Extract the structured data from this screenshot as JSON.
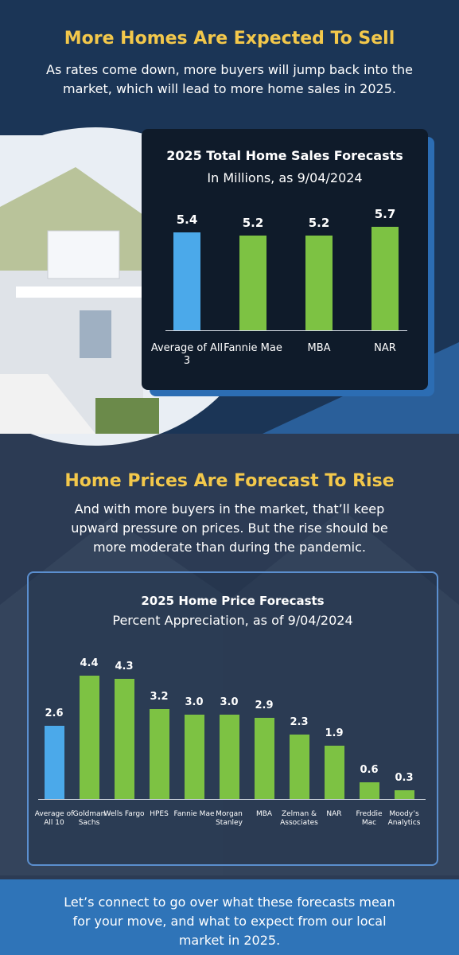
{
  "sections": [
    {
      "title": "More Homes Are Expected To Sell",
      "text": "As rates come down, more buyers will jump back into the market, which will lead to more home sales in 2025."
    },
    {
      "title": "Home Prices Are Forecast To Rise",
      "text": "And with more buyers in the market, that’ll keep upward pressure on prices. But the rise should be more moderate than during the pandemic."
    }
  ],
  "footer": "Let’s connect to go over what these forecasts mean for your move, and what to expect from our local market in 2025.",
  "chart_data": [
    {
      "type": "bar",
      "title": "2025 Total Home Sales Forecasts",
      "subtitle": "In Millions, as 9/04/2024",
      "categories": [
        "Average of All 3",
        "Fannie Mae",
        "MBA",
        "NAR"
      ],
      "values": [
        5.4,
        5.2,
        5.2,
        5.7
      ],
      "colors": [
        "#4ba9ea",
        "#7dc243",
        "#7dc243",
        "#7dc243"
      ]
    },
    {
      "type": "bar",
      "title": "2025 Home Price Forecasts",
      "subtitle": "Percent Appreciation, as of 9/04/2024",
      "categories": [
        "Average of All 10",
        "Goldman Sachs",
        "Wells Fargo",
        "HPES",
        "Fannie Mae",
        "Morgan Stanley",
        "MBA",
        "Zelman & Associates",
        "NAR",
        "Freddie Mac",
        "Moody’s Analytics"
      ],
      "values": [
        2.6,
        4.4,
        4.3,
        3.2,
        3.0,
        3.0,
        2.9,
        2.3,
        1.9,
        0.6,
        0.3
      ],
      "value_labels": [
        "2.6",
        "4.4",
        "4.3",
        "3.2",
        "3.0",
        "3.0",
        "2.9",
        "2.3",
        "1.9",
        "0.6",
        "0.3"
      ],
      "colors": [
        "#4ba9ea",
        "#7dc243",
        "#7dc243",
        "#7dc243",
        "#7dc243",
        "#7dc243",
        "#7dc243",
        "#7dc243",
        "#7dc243",
        "#7dc243",
        "#7dc243"
      ]
    }
  ]
}
